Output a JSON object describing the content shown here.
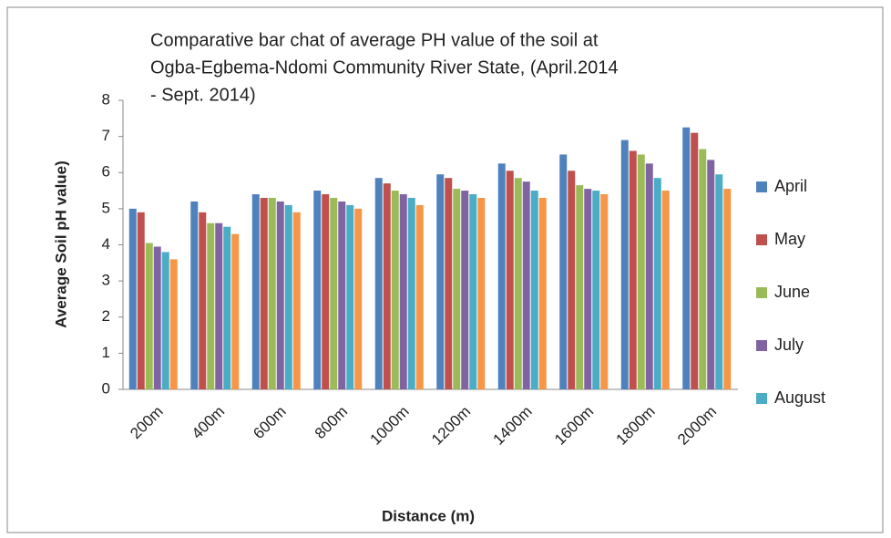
{
  "chart_data": {
    "type": "bar",
    "title": [
      "Comparative bar chat of average PH value of the soil at",
      "Ogba-Egbema-Ndomi Community River State, (April.2014",
      "- Sept. 2014)"
    ],
    "x_label": "Distance  (m)",
    "y_label": "Average Soil   pH value)",
    "categories": [
      "200m",
      "400m",
      "600m",
      "800m",
      "1000m",
      "1200m",
      "1400m",
      "1600m",
      "1800m",
      "2000m"
    ],
    "series": [
      {
        "name": "April",
        "color": "#4f81bd",
        "values": [
          5.0,
          5.2,
          5.4,
          5.5,
          5.85,
          5.95,
          6.25,
          6.5,
          6.9,
          7.25
        ]
      },
      {
        "name": "May",
        "color": "#c0504d",
        "values": [
          4.9,
          4.9,
          5.3,
          5.4,
          5.7,
          5.85,
          6.05,
          6.05,
          6.6,
          7.1
        ]
      },
      {
        "name": "June",
        "color": "#9bbb59",
        "values": [
          4.05,
          4.6,
          5.3,
          5.3,
          5.5,
          5.55,
          5.85,
          5.65,
          6.5,
          6.65
        ]
      },
      {
        "name": "July",
        "color": "#8064a2",
        "values": [
          3.95,
          4.6,
          5.2,
          5.2,
          5.4,
          5.5,
          5.75,
          5.55,
          6.25,
          6.35
        ]
      },
      {
        "name": "August",
        "color": "#4bacc6",
        "values": [
          3.8,
          4.5,
          5.1,
          5.1,
          5.3,
          5.4,
          5.5,
          5.5,
          5.85,
          5.95
        ]
      },
      {
        "color": "#f79646",
        "values": [
          3.6,
          4.3,
          4.9,
          5.0,
          5.1,
          5.3,
          5.3,
          5.4,
          5.5,
          5.55
        ]
      }
    ],
    "ylim": [
      0,
      8
    ],
    "yticks": [
      0,
      1,
      2,
      3,
      4,
      5,
      6,
      7,
      8
    ],
    "grid": false,
    "legend": "right"
  }
}
